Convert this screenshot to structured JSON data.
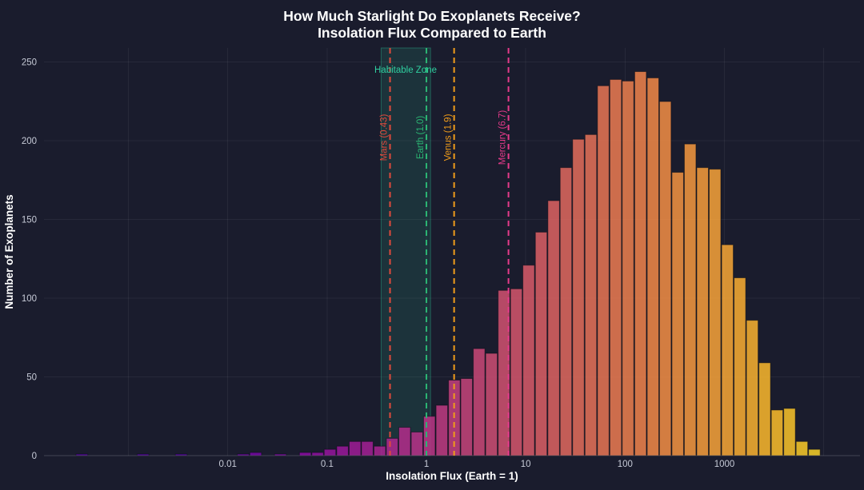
{
  "page": {
    "background_color": "#1a1c2d",
    "text_color": "#ffffff",
    "tick_color": "#c6cad6",
    "grid_color": "rgba(255,255,255,0.06)",
    "zeroline_color": "rgba(255,255,255,0.18)"
  },
  "title": {
    "line1": "How Much Starlight Do Exoplanets Receive?",
    "line2": "Insolation Flux Compared to Earth"
  },
  "chart_data": {
    "type": "bar",
    "subtype": "histogram-log-x",
    "title": "How Much Starlight Do Exoplanets Receive? Insolation Flux Compared to Earth",
    "xlabel": "Insolation Flux (Earth = 1)",
    "ylabel": "Number of Exoplanets",
    "x_scale": "log10",
    "xlim_log10": [
      -3.85,
      4.365
    ],
    "ylim": [
      0,
      259
    ],
    "y_ticks": [
      0,
      50,
      100,
      150,
      200,
      250
    ],
    "x_tick_values": [
      0.01,
      0.1,
      1,
      10,
      100,
      1000
    ],
    "x_tick_labels": [
      "0.01",
      "0.1",
      "1",
      "10",
      "100",
      "1000"
    ],
    "x_grid_decades": [
      -3,
      -2,
      -1,
      0,
      1,
      2,
      3,
      4
    ],
    "grid": true,
    "legend": false,
    "log10_bin_width": 0.125,
    "bins": [
      {
        "flux": 0.00034,
        "count": 1
      },
      {
        "flux": 0.0014,
        "count": 1
      },
      {
        "flux": 0.0034,
        "count": 1
      },
      {
        "flux": 0.0143,
        "count": 1
      },
      {
        "flux": 0.0191,
        "count": 2
      },
      {
        "flux": 0.0339,
        "count": 1
      },
      {
        "flux": 0.0603,
        "count": 2
      },
      {
        "flux": 0.0804,
        "count": 2
      },
      {
        "flux": 0.107,
        "count": 4
      },
      {
        "flux": 0.143,
        "count": 6
      },
      {
        "flux": 0.191,
        "count": 9
      },
      {
        "flux": 0.254,
        "count": 9
      },
      {
        "flux": 0.339,
        "count": 6
      },
      {
        "flux": 0.452,
        "count": 11
      },
      {
        "flux": 0.603,
        "count": 18
      },
      {
        "flux": 0.804,
        "count": 15
      },
      {
        "flux": 1.07,
        "count": 25
      },
      {
        "flux": 1.43,
        "count": 32
      },
      {
        "flux": 1.91,
        "count": 48
      },
      {
        "flux": 2.54,
        "count": 49
      },
      {
        "flux": 3.39,
        "count": 68
      },
      {
        "flux": 4.52,
        "count": 65
      },
      {
        "flux": 6.03,
        "count": 105
      },
      {
        "flux": 8.04,
        "count": 106
      },
      {
        "flux": 10.7,
        "count": 121
      },
      {
        "flux": 14.3,
        "count": 142
      },
      {
        "flux": 19.1,
        "count": 162
      },
      {
        "flux": 25.4,
        "count": 183
      },
      {
        "flux": 33.9,
        "count": 201
      },
      {
        "flux": 45.2,
        "count": 204
      },
      {
        "flux": 60.3,
        "count": 235
      },
      {
        "flux": 80.4,
        "count": 239
      },
      {
        "flux": 107,
        "count": 238
      },
      {
        "flux": 143,
        "count": 244
      },
      {
        "flux": 191,
        "count": 240
      },
      {
        "flux": 254,
        "count": 225
      },
      {
        "flux": 339,
        "count": 180
      },
      {
        "flux": 452,
        "count": 198
      },
      {
        "flux": 603,
        "count": 183
      },
      {
        "flux": 804,
        "count": 182
      },
      {
        "flux": 1073,
        "count": 134
      },
      {
        "flux": 1431,
        "count": 113
      },
      {
        "flux": 1908,
        "count": 86
      },
      {
        "flux": 2544,
        "count": 59
      },
      {
        "flux": 3392,
        "count": 29
      },
      {
        "flux": 4524,
        "count": 30
      },
      {
        "flux": 6032,
        "count": 9
      },
      {
        "flux": 8043,
        "count": 4
      }
    ],
    "annotations": {
      "habitable_zone": {
        "label": "Habitable Zone",
        "flux_min": 0.35,
        "flux_max": 1.1,
        "fill_color": "rgba(46,190,148,0.14)",
        "edge_color": "rgba(46,190,148,0.40)",
        "label_color": "#2fd0a0"
      },
      "planets": [
        {
          "label": "Mars (0.43)",
          "flux": 0.43,
          "color": "#e04a3c"
        },
        {
          "label": "Earth (1.0)",
          "flux": 1.0,
          "color": "#2bb673"
        },
        {
          "label": "Venus (1.9)",
          "flux": 1.9,
          "color": "#f09c1a"
        },
        {
          "label": "Mercury (6.7)",
          "flux": 6.7,
          "color": "#e53a8a"
        }
      ]
    },
    "colormap": {
      "name": "plasma",
      "bar_opacity": 0.85,
      "t_intercept": 0.44,
      "t_slope": 0.12,
      "t_min": 0.15,
      "t_max": 0.95,
      "stops": [
        {
          "t": 0.0,
          "color": "#0d0887"
        },
        {
          "t": 0.14,
          "color": "#5402a3"
        },
        {
          "t": 0.29,
          "color": "#8b0aa5"
        },
        {
          "t": 0.43,
          "color": "#b93289"
        },
        {
          "t": 0.57,
          "color": "#db5c68"
        },
        {
          "t": 0.71,
          "color": "#f48849"
        },
        {
          "t": 0.86,
          "color": "#febc2b"
        },
        {
          "t": 1.0,
          "color": "#f0f921"
        }
      ]
    }
  }
}
